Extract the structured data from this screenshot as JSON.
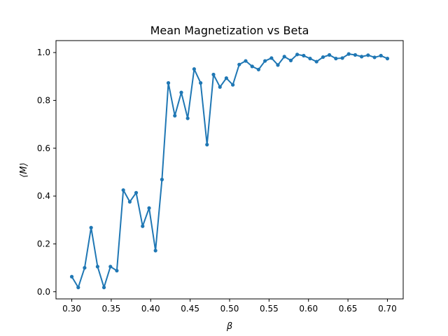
{
  "chart_data": {
    "type": "line",
    "title": "Mean Magnetization vs Beta",
    "xlabel": "β",
    "ylabel": "⟨M⟩",
    "xlim": [
      0.28,
      0.72
    ],
    "ylim": [
      -0.03,
      1.05
    ],
    "xticks": [
      0.3,
      0.35,
      0.4,
      0.45,
      0.5,
      0.55,
      0.6,
      0.65,
      0.7
    ],
    "xtick_labels": [
      "0.30",
      "0.35",
      "0.40",
      "0.45",
      "0.50",
      "0.55",
      "0.60",
      "0.65",
      "0.70"
    ],
    "yticks": [
      0.0,
      0.2,
      0.4,
      0.6,
      0.8,
      1.0
    ],
    "ytick_labels": [
      "0.0",
      "0.2",
      "0.4",
      "0.6",
      "0.8",
      "1.0"
    ],
    "grid": false,
    "legend": "none",
    "series": [
      {
        "color": "#1f77b4",
        "marker": "circle",
        "x": [
          0.3,
          0.3082,
          0.3163,
          0.3245,
          0.3327,
          0.3408,
          0.349,
          0.3571,
          0.3653,
          0.3735,
          0.3816,
          0.3898,
          0.398,
          0.4061,
          0.4143,
          0.4224,
          0.4306,
          0.4388,
          0.4469,
          0.4551,
          0.4633,
          0.4714,
          0.4796,
          0.4878,
          0.4959,
          0.5041,
          0.5122,
          0.5204,
          0.5286,
          0.5367,
          0.5449,
          0.5531,
          0.5612,
          0.5694,
          0.5776,
          0.5857,
          0.5939,
          0.602,
          0.6102,
          0.6184,
          0.6265,
          0.6347,
          0.6429,
          0.651,
          0.6592,
          0.6673,
          0.6755,
          0.6837,
          0.6918,
          0.7
        ],
        "y": [
          0.063,
          0.018,
          0.1,
          0.268,
          0.105,
          0.018,
          0.105,
          0.088,
          0.425,
          0.376,
          0.414,
          0.274,
          0.35,
          0.172,
          0.469,
          0.873,
          0.736,
          0.833,
          0.725,
          0.931,
          0.873,
          0.615,
          0.908,
          0.856,
          0.893,
          0.865,
          0.95,
          0.965,
          0.942,
          0.929,
          0.965,
          0.977,
          0.948,
          0.983,
          0.967,
          0.992,
          0.987,
          0.975,
          0.962,
          0.981,
          0.99,
          0.975,
          0.977,
          0.994,
          0.99,
          0.983,
          0.989,
          0.98,
          0.987,
          0.975
        ]
      }
    ]
  }
}
